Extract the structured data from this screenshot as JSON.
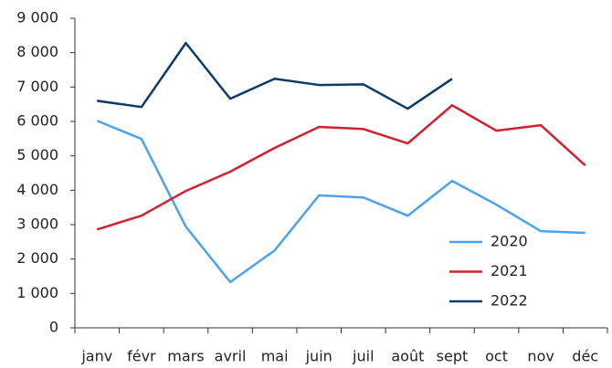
{
  "chart_data": {
    "type": "line",
    "categories": [
      "janv",
      "févr",
      "mars",
      "avril",
      "mai",
      "juin",
      "juil",
      "août",
      "sept",
      "oct",
      "nov",
      "déc"
    ],
    "series": [
      {
        "name": "2020",
        "color": "#4da1ee",
        "values": [
          6020,
          5490,
          2940,
          1330,
          2250,
          3850,
          3790,
          3260,
          4270,
          3580,
          2810,
          2760
        ]
      },
      {
        "name": "2021",
        "color": "#d4202e",
        "values": [
          2860,
          3260,
          3980,
          4540,
          5230,
          5840,
          5780,
          5360,
          6470,
          5730,
          5890,
          4720
        ]
      },
      {
        "name": "2022",
        "color": "#0c3a6a",
        "values": [
          6600,
          6420,
          8280,
          6660,
          7240,
          7060,
          7080,
          6370,
          7240,
          null,
          null,
          null
        ]
      }
    ],
    "ylim": [
      0,
      9000
    ],
    "yticks": [
      0,
      {
        "value": 1000,
        "label": "1 000"
      },
      {
        "value": 2000,
        "label": "2 000"
      },
      {
        "value": 3000,
        "label": "3 000"
      },
      {
        "value": 4000,
        "label": "4 000"
      },
      {
        "value": 5000,
        "label": "5 000"
      },
      {
        "value": 6000,
        "label": "6 000"
      },
      {
        "value": 7000,
        "label": "7 000"
      },
      {
        "value": 8000,
        "label": "8 000"
      },
      {
        "value": 9000,
        "label": "9 000"
      }
    ],
    "grid": false,
    "legend": "lower right"
  }
}
